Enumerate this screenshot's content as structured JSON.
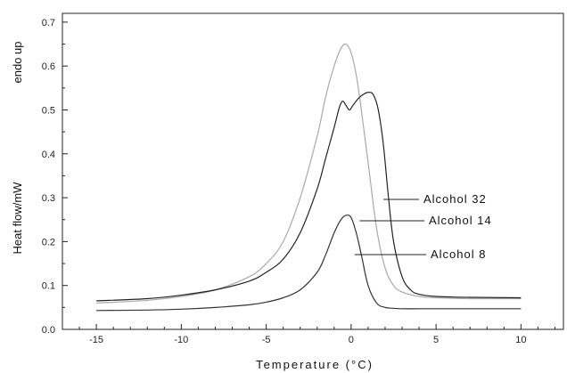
{
  "chart_data": {
    "type": "line",
    "xlabel": "Temperature (°C)",
    "ylabel": "Heat flow/mW",
    "ylabel_top": "endo up",
    "xlim": [
      -17,
      12.5
    ],
    "ylim": [
      0,
      0.72
    ],
    "xticks": [
      -15,
      -10,
      -5,
      0,
      5,
      10
    ],
    "yticks": [
      0.0,
      0.1,
      0.2,
      0.3,
      0.4,
      0.5,
      0.6,
      0.7
    ],
    "ytick_labels": [
      "0.0",
      "0.1",
      "0.2",
      "0.3",
      "0.4",
      "0.5",
      "0.6",
      "0.7"
    ],
    "grid": false,
    "series": [
      {
        "name": "Alcohol 32",
        "color": "#222222",
        "x": [
          -15,
          -12,
          -10,
          -8,
          -6,
          -5,
          -4,
          -3,
          -2,
          -1.5,
          -1,
          -0.7,
          -0.5,
          -0.3,
          -0.1,
          0.1,
          0.4,
          0.7,
          1.0,
          1.3,
          1.6,
          1.9,
          2.2,
          2.5,
          3.0,
          3.5,
          4.0,
          5,
          7,
          10
        ],
        "y": [
          0.065,
          0.07,
          0.078,
          0.09,
          0.11,
          0.13,
          0.16,
          0.22,
          0.32,
          0.39,
          0.46,
          0.505,
          0.52,
          0.51,
          0.5,
          0.51,
          0.525,
          0.535,
          0.54,
          0.535,
          0.5,
          0.42,
          0.3,
          0.2,
          0.12,
          0.09,
          0.08,
          0.075,
          0.073,
          0.072
        ]
      },
      {
        "name": "Alcohol 14",
        "color": "#aaaaaa",
        "x": [
          -15,
          -12,
          -10,
          -8,
          -6,
          -5,
          -4,
          -3,
          -2,
          -1.5,
          -1,
          -0.6,
          -0.3,
          0,
          0.3,
          0.6,
          1.0,
          1.5,
          2.0,
          2.5,
          3.0,
          4,
          5,
          7,
          10
        ],
        "y": [
          0.06,
          0.066,
          0.075,
          0.09,
          0.12,
          0.15,
          0.2,
          0.3,
          0.44,
          0.53,
          0.6,
          0.64,
          0.65,
          0.63,
          0.58,
          0.5,
          0.38,
          0.23,
          0.14,
          0.1,
          0.085,
          0.075,
          0.072,
          0.07,
          0.07
        ]
      },
      {
        "name": "Alcohol 8",
        "color": "#333333",
        "x": [
          -15,
          -12,
          -10,
          -8,
          -6,
          -5,
          -4,
          -3,
          -2,
          -1.5,
          -1,
          -0.6,
          -0.3,
          0,
          0.3,
          0.6,
          1.0,
          1.5,
          2.0,
          2.5,
          3.0,
          4,
          5,
          7,
          10
        ],
        "y": [
          0.043,
          0.044,
          0.046,
          0.05,
          0.056,
          0.062,
          0.072,
          0.09,
          0.13,
          0.17,
          0.22,
          0.25,
          0.26,
          0.255,
          0.22,
          0.17,
          0.1,
          0.06,
          0.05,
          0.048,
          0.047,
          0.047,
          0.047,
          0.047,
          0.047
        ]
      }
    ],
    "annotations": [
      {
        "text": "Alcohol 32",
        "series": 0,
        "x": 1.9,
        "y": 0.3
      },
      {
        "text": "Alcohol 14",
        "series": 1,
        "x": 0.5,
        "y": 0.245
      },
      {
        "text": "Alcohol 8",
        "series": 2,
        "x": 0.2,
        "y": 0.17
      }
    ]
  }
}
